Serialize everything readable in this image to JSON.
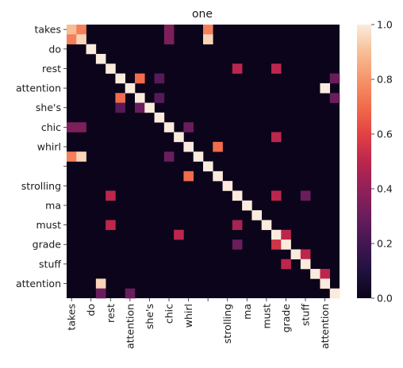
{
  "chart_data": {
    "type": "heatmap",
    "title": "one",
    "row_labels": [
      "takes",
      "do",
      "rest",
      "attention",
      "she's",
      "chic",
      "whirl",
      "",
      "strolling",
      "ma",
      "must",
      "grade",
      "stuff",
      "attention"
    ],
    "col_labels": [
      "takes",
      "do",
      "rest",
      "attention",
      "she's",
      "chic",
      "whirl",
      "",
      "strolling",
      "ma",
      "must",
      "grade",
      "stuff",
      "attention"
    ],
    "y_tick_labels": [
      "takes",
      "",
      "do",
      "",
      "rest",
      "",
      "attention",
      "",
      "she's",
      "",
      "chic",
      "",
      "whirl",
      "",
      "",
      "",
      "strolling",
      "",
      "ma",
      "",
      "must",
      "",
      "grade",
      "",
      "stuff",
      "",
      "attention",
      ""
    ],
    "x_tick_labels": [
      "takes",
      "",
      "do",
      "",
      "rest",
      "",
      "attention",
      "",
      "she's",
      "",
      "chic",
      "",
      "whirl",
      "",
      "",
      "",
      "strolling",
      "",
      "ma",
      "",
      "must",
      "",
      "grade",
      "",
      "stuff",
      "",
      "attention",
      ""
    ],
    "cells": [
      [
        0,
        0,
        0.9
      ],
      [
        0,
        1,
        0.75
      ],
      [
        0,
        10,
        0.35
      ],
      [
        0,
        14,
        0.75
      ],
      [
        1,
        0,
        0.75
      ],
      [
        1,
        1,
        0.95
      ],
      [
        1,
        10,
        0.35
      ],
      [
        1,
        14,
        0.95
      ],
      [
        2,
        2,
        1.0
      ],
      [
        3,
        3,
        1.0
      ],
      [
        4,
        4,
        1.0
      ],
      [
        4,
        17,
        0.5
      ],
      [
        4,
        21,
        0.5
      ],
      [
        5,
        5,
        1.0
      ],
      [
        5,
        7,
        0.7
      ],
      [
        5,
        9,
        0.25
      ],
      [
        5,
        27,
        0.3
      ],
      [
        6,
        6,
        1.0
      ],
      [
        6,
        26,
        1.0
      ],
      [
        7,
        5,
        0.7
      ],
      [
        7,
        7,
        1.0
      ],
      [
        7,
        9,
        0.25
      ],
      [
        7,
        27,
        0.3
      ],
      [
        8,
        5,
        0.25
      ],
      [
        8,
        7,
        0.3
      ],
      [
        8,
        8,
        1.0
      ],
      [
        9,
        9,
        1.0
      ],
      [
        10,
        0,
        0.35
      ],
      [
        10,
        1,
        0.35
      ],
      [
        10,
        10,
        1.0
      ],
      [
        10,
        12,
        0.3
      ],
      [
        11,
        11,
        1.0
      ],
      [
        11,
        21,
        0.5
      ],
      [
        12,
        12,
        1.0
      ],
      [
        12,
        15,
        0.7
      ],
      [
        13,
        0,
        0.75
      ],
      [
        13,
        1,
        0.95
      ],
      [
        13,
        10,
        0.3
      ],
      [
        13,
        13,
        1.0
      ],
      [
        14,
        14,
        1.0
      ],
      [
        15,
        12,
        0.7
      ],
      [
        15,
        15,
        1.0
      ],
      [
        16,
        16,
        1.0
      ],
      [
        17,
        4,
        0.5
      ],
      [
        17,
        17,
        1.0
      ],
      [
        17,
        21,
        0.5
      ],
      [
        17,
        24,
        0.3
      ],
      [
        18,
        18,
        1.0
      ],
      [
        19,
        19,
        1.0
      ],
      [
        20,
        4,
        0.5
      ],
      [
        20,
        17,
        0.45
      ],
      [
        20,
        20,
        1.0
      ],
      [
        21,
        11,
        0.5
      ],
      [
        21,
        21,
        1.0
      ],
      [
        21,
        22,
        0.5
      ],
      [
        22,
        17,
        0.3
      ],
      [
        22,
        21,
        0.55
      ],
      [
        22,
        22,
        1.0
      ],
      [
        23,
        23,
        1.0
      ],
      [
        23,
        24,
        0.5
      ],
      [
        24,
        22,
        0.5
      ],
      [
        24,
        24,
        1.0
      ],
      [
        25,
        25,
        1.0
      ],
      [
        25,
        26,
        0.5
      ],
      [
        26,
        3,
        0.95
      ],
      [
        26,
        26,
        1.0
      ],
      [
        27,
        27,
        1.0
      ],
      [
        27,
        3,
        0.3
      ],
      [
        27,
        6,
        0.3
      ]
    ],
    "colorbar_ticks": [
      "0.0",
      "0.2",
      "0.4",
      "0.6",
      "0.8",
      "1.0"
    ],
    "vmin": 0.0,
    "vmax": 1.0
  }
}
